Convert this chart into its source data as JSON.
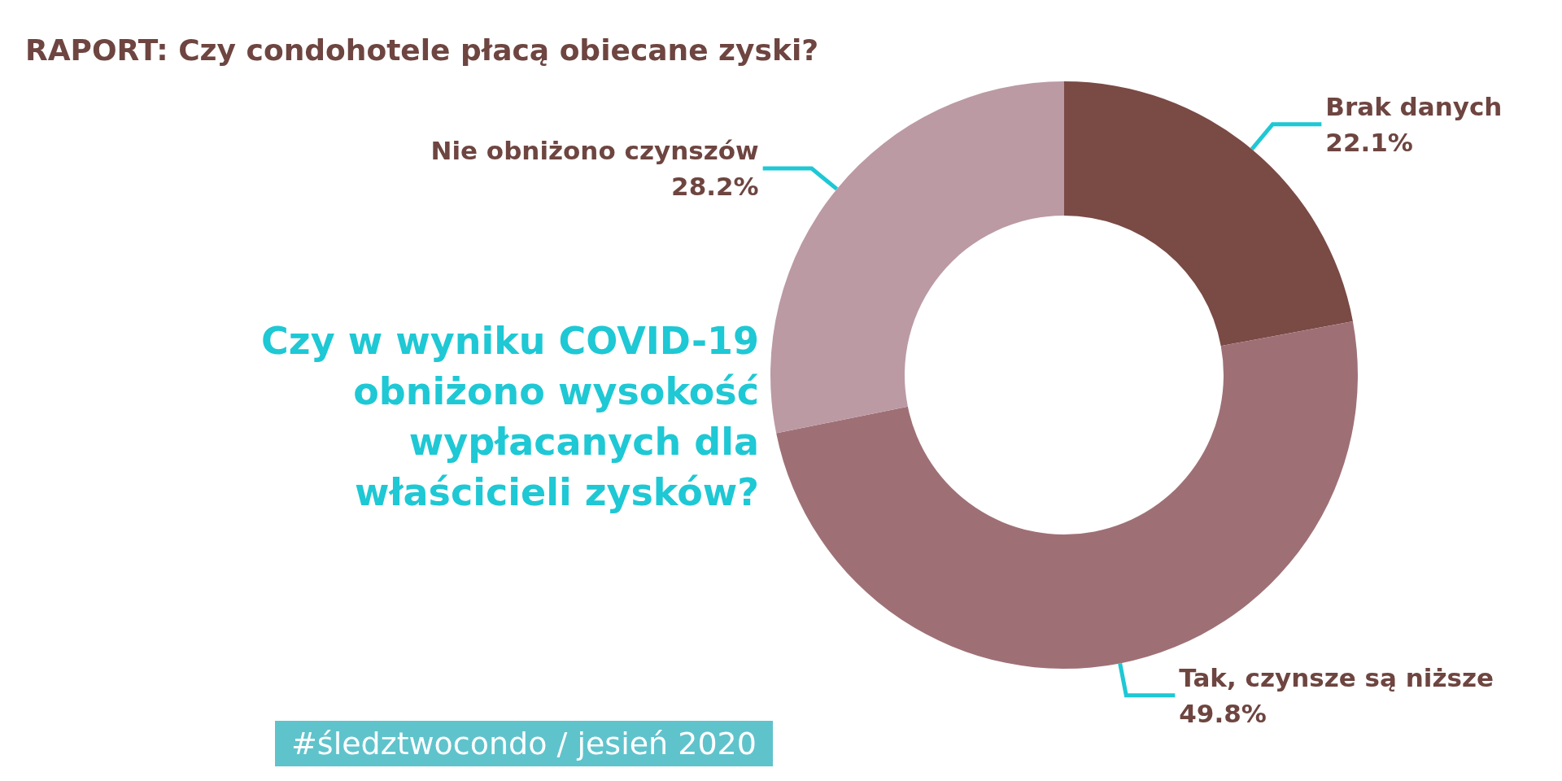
{
  "chart_data": {
    "type": "donut",
    "title": "RAPORT: Czy condohotele płacą obiecane zyski?",
    "subtitle": "Czy w wyniku COVID-19 obniżono  wysokość wypłacanych dla właścicieli zysków?",
    "categories": [
      "Brak danych",
      "Tak, czynsze są niższe",
      "Nie obniżono czynszów"
    ],
    "values": [
      22.1,
      49.8,
      28.2
    ],
    "colors": [
      "#7a4a45",
      "#9e7075",
      "#bb9aa4"
    ],
    "value_labels": [
      "22.1%",
      "49.8%",
      "28.2%"
    ],
    "legend": false,
    "annotations": [
      "#śledztwocondo / jesień 2020"
    ]
  }
}
